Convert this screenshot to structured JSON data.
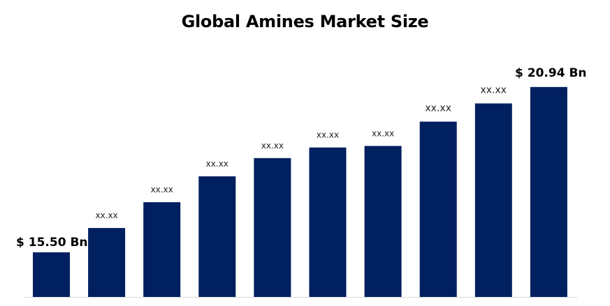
{
  "chart_data": {
    "type": "bar",
    "title": "Global Amines Market Size",
    "xlabel": "",
    "ylabel": "",
    "bar_color": "#002060",
    "axis_color": "#d9d9d9",
    "bars": [
      {
        "value": 15.5,
        "label": "$ 15.50 Bn"
      },
      {
        "value": 16.3,
        "label": "xx.xx"
      },
      {
        "value": 17.15,
        "label": "xx.xx"
      },
      {
        "value": 18.0,
        "label": "xx.xx"
      },
      {
        "value": 18.6,
        "label": "xx.xx"
      },
      {
        "value": 18.95,
        "label": "xx.xx"
      },
      {
        "value": 19.0,
        "label": "xx.xx"
      },
      {
        "value": 19.8,
        "label": "xx.xx"
      },
      {
        "value": 20.4,
        "label": "xx.xx"
      },
      {
        "value": 20.94,
        "label": "$ 20.94 Bn"
      }
    ],
    "legend": "none",
    "grid": false
  }
}
